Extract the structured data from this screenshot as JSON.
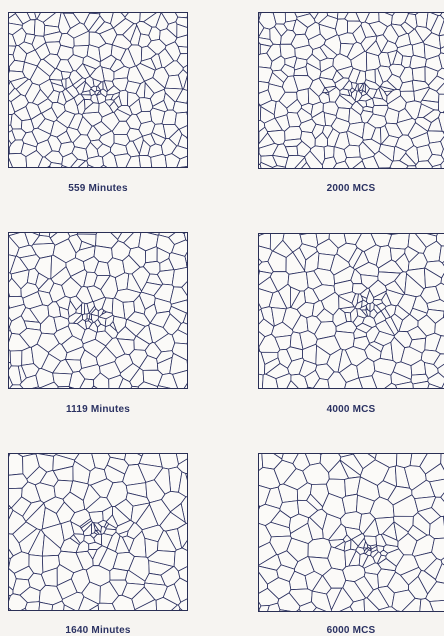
{
  "panels": [
    {
      "caption": "559 Minutes",
      "seed": 11,
      "cell": 13,
      "cluster": [
        0.45,
        0.52
      ]
    },
    {
      "caption": "1119 Minutes",
      "seed": 23,
      "cell": 15,
      "cluster": [
        0.45,
        0.55
      ]
    },
    {
      "caption": "1640 Minutes",
      "seed": 37,
      "cell": 17,
      "cluster": [
        0.5,
        0.5
      ]
    },
    {
      "caption": "2000 MCS",
      "seed": 41,
      "cell": 13,
      "cluster": [
        0.5,
        0.5
      ]
    },
    {
      "caption": "4000 MCS",
      "seed": 53,
      "cell": 15,
      "cluster": [
        0.55,
        0.5
      ]
    },
    {
      "caption": "6000 MCS",
      "seed": 67,
      "cell": 17,
      "cluster": [
        0.55,
        0.6
      ]
    }
  ],
  "colors": {
    "line": "#2b3060",
    "fill": "#fbfaf8",
    "caption": "#2b3262"
  }
}
